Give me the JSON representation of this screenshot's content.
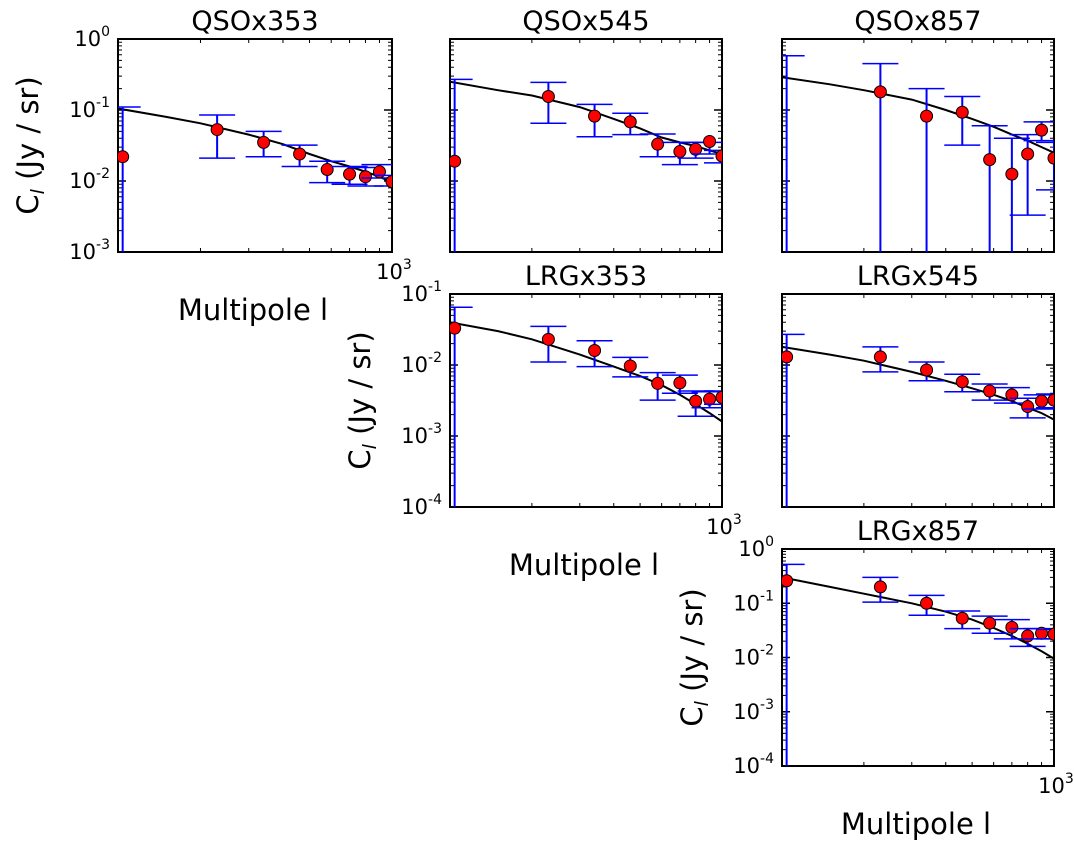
{
  "figure": {
    "tick_exponent_prefix": "10",
    "y_label_parts": {
      "main": "C",
      "sub": "l",
      "rest": " (Jy / sr)"
    },
    "x_label": "Multipole l"
  },
  "style": {
    "model_color": "#000000",
    "errorbar_color": "#0000ff",
    "marker_fill": "#ff0000",
    "marker_edge": "#000000"
  },
  "chart_data": [
    {
      "type": "scatter",
      "title": "QSOx353",
      "x_scale": "log",
      "y_scale": "log",
      "xlim": [
        100,
        1000
      ],
      "ylim": [
        0.001,
        1
      ],
      "y_tick_exponents": [
        -3,
        -2,
        -1,
        0
      ],
      "x_tick_exponents": [
        3
      ],
      "show_y_ticklabels": true,
      "show_x_ticklabels": true,
      "show_ylabel": true,
      "show_xlabel": true,
      "points": [
        {
          "x": 104,
          "y": 0.022,
          "lo": 0.0001,
          "hi": 0.11
        },
        {
          "x": 230,
          "y": 0.053,
          "lo": 0.021,
          "hi": 0.085
        },
        {
          "x": 340,
          "y": 0.035,
          "lo": 0.022,
          "hi": 0.05
        },
        {
          "x": 460,
          "y": 0.024,
          "lo": 0.016,
          "hi": 0.032
        },
        {
          "x": 580,
          "y": 0.0145,
          "lo": 0.0095,
          "hi": 0.019
        },
        {
          "x": 700,
          "y": 0.0125,
          "lo": 0.009,
          "hi": 0.016
        },
        {
          "x": 800,
          "y": 0.0115,
          "lo": 0.0085,
          "hi": 0.0155
        },
        {
          "x": 900,
          "y": 0.0135,
          "lo": 0.011,
          "hi": 0.017
        },
        {
          "x": 1000,
          "y": 0.0098,
          "lo": 0.0085,
          "hi": 0.012
        }
      ],
      "model": {
        "x": [
          100,
          150,
          200,
          300,
          400,
          500,
          600,
          700,
          800,
          900,
          1000
        ],
        "y": [
          0.105,
          0.08,
          0.065,
          0.045,
          0.033,
          0.024,
          0.019,
          0.016,
          0.0135,
          0.0115,
          0.0095
        ]
      }
    },
    {
      "type": "scatter",
      "title": "QSOx545",
      "x_scale": "log",
      "y_scale": "log",
      "xlim": [
        100,
        1000
      ],
      "ylim": [
        0.001,
        1
      ],
      "y_tick_exponents": [
        -3,
        -2,
        -1,
        0
      ],
      "x_tick_exponents": [
        3
      ],
      "show_y_ticklabels": false,
      "show_x_ticklabels": false,
      "show_ylabel": false,
      "show_xlabel": false,
      "points": [
        {
          "x": 104,
          "y": 0.019,
          "lo": 0.0001,
          "hi": 0.27
        },
        {
          "x": 230,
          "y": 0.155,
          "lo": 0.065,
          "hi": 0.245
        },
        {
          "x": 340,
          "y": 0.082,
          "lo": 0.042,
          "hi": 0.12
        },
        {
          "x": 460,
          "y": 0.068,
          "lo": 0.045,
          "hi": 0.09
        },
        {
          "x": 580,
          "y": 0.033,
          "lo": 0.022,
          "hi": 0.046
        },
        {
          "x": 700,
          "y": 0.026,
          "lo": 0.017,
          "hi": 0.035
        },
        {
          "x": 800,
          "y": 0.028,
          "lo": 0.021,
          "hi": 0.035
        },
        {
          "x": 900,
          "y": 0.036,
          "lo": 0.024,
          "hi": 0.035
        },
        {
          "x": 1000,
          "y": 0.0225,
          "lo": 0.018,
          "hi": 0.027
        }
      ],
      "model": {
        "x": [
          100,
          150,
          200,
          300,
          400,
          500,
          600,
          700,
          800,
          900,
          1000
        ],
        "y": [
          0.25,
          0.19,
          0.16,
          0.11,
          0.075,
          0.055,
          0.041,
          0.035,
          0.031,
          0.027,
          0.024
        ]
      }
    },
    {
      "type": "scatter",
      "title": "QSOx857",
      "x_scale": "log",
      "y_scale": "log",
      "xlim": [
        100,
        1000
      ],
      "ylim": [
        0.001,
        1
      ],
      "y_tick_exponents": [
        -3,
        -2,
        -1,
        0
      ],
      "x_tick_exponents": [
        3
      ],
      "show_y_ticklabels": false,
      "show_x_ticklabels": false,
      "show_ylabel": false,
      "show_xlabel": false,
      "points": [
        {
          "x": 104,
          "y": 0.001,
          "lo": 0.0001,
          "hi": 0.58
        },
        {
          "x": 230,
          "y": 0.18,
          "lo": 0.0001,
          "hi": 0.45
        },
        {
          "x": 340,
          "y": 0.082,
          "lo": 0.0001,
          "hi": 0.2
        },
        {
          "x": 460,
          "y": 0.093,
          "lo": 0.032,
          "hi": 0.155
        },
        {
          "x": 580,
          "y": 0.02,
          "lo": 0.0001,
          "hi": 0.06
        },
        {
          "x": 700,
          "y": 0.0125,
          "lo": 0.0001,
          "hi": 0.04
        },
        {
          "x": 800,
          "y": 0.024,
          "lo": 0.0033,
          "hi": 0.045
        },
        {
          "x": 900,
          "y": 0.052,
          "lo": 0.037,
          "hi": 0.068
        },
        {
          "x": 1000,
          "y": 0.021,
          "lo": 0.0075,
          "hi": 0.035
        }
      ],
      "model": {
        "x": [
          100,
          150,
          200,
          300,
          400,
          500,
          600,
          700,
          800,
          900,
          1000
        ],
        "y": [
          0.29,
          0.23,
          0.19,
          0.14,
          0.1,
          0.075,
          0.058,
          0.045,
          0.037,
          0.03,
          0.025
        ]
      }
    },
    {
      "type": "scatter",
      "title": "LRGx353",
      "x_scale": "log",
      "y_scale": "log",
      "xlim": [
        100,
        1000
      ],
      "ylim": [
        0.0001,
        0.1
      ],
      "y_tick_exponents": [
        -4,
        -3,
        -2,
        -1
      ],
      "x_tick_exponents": [
        3
      ],
      "show_y_ticklabels": true,
      "show_x_ticklabels": true,
      "show_ylabel": true,
      "show_xlabel": true,
      "points": [
        {
          "x": 104,
          "y": 0.033,
          "lo": 1e-05,
          "hi": 0.065
        },
        {
          "x": 230,
          "y": 0.023,
          "lo": 0.011,
          "hi": 0.035
        },
        {
          "x": 340,
          "y": 0.016,
          "lo": 0.0095,
          "hi": 0.022
        },
        {
          "x": 460,
          "y": 0.0097,
          "lo": 0.0068,
          "hi": 0.0128
        },
        {
          "x": 580,
          "y": 0.0055,
          "lo": 0.0032,
          "hi": 0.0078
        },
        {
          "x": 700,
          "y": 0.0056,
          "lo": 0.004,
          "hi": 0.0072
        },
        {
          "x": 800,
          "y": 0.0031,
          "lo": 0.0019,
          "hi": 0.0043
        },
        {
          "x": 900,
          "y": 0.0033,
          "lo": 0.0025,
          "hi": 0.0042
        },
        {
          "x": 1000,
          "y": 0.0035,
          "lo": 0.0028,
          "hi": 0.0043
        }
      ],
      "model": {
        "x": [
          100,
          150,
          200,
          300,
          400,
          500,
          600,
          700,
          800,
          900,
          1000
        ],
        "y": [
          0.04,
          0.03,
          0.023,
          0.014,
          0.0095,
          0.007,
          0.0052,
          0.0038,
          0.0028,
          0.0021,
          0.0016
        ]
      }
    },
    {
      "type": "scatter",
      "title": "LRGx545",
      "x_scale": "log",
      "y_scale": "log",
      "xlim": [
        100,
        1000
      ],
      "ylim": [
        0.0001,
        0.1
      ],
      "y_tick_exponents": [
        -4,
        -3,
        -2,
        -1
      ],
      "x_tick_exponents": [
        3
      ],
      "show_y_ticklabels": false,
      "show_x_ticklabels": false,
      "show_ylabel": false,
      "show_xlabel": false,
      "points": [
        {
          "x": 104,
          "y": 0.013,
          "lo": 1e-05,
          "hi": 0.027
        },
        {
          "x": 230,
          "y": 0.013,
          "lo": 0.008,
          "hi": 0.018
        },
        {
          "x": 340,
          "y": 0.0085,
          "lo": 0.006,
          "hi": 0.011
        },
        {
          "x": 460,
          "y": 0.0058,
          "lo": 0.0042,
          "hi": 0.0074
        },
        {
          "x": 580,
          "y": 0.0043,
          "lo": 0.0032,
          "hi": 0.0054
        },
        {
          "x": 700,
          "y": 0.0038,
          "lo": 0.0029,
          "hi": 0.0048
        },
        {
          "x": 800,
          "y": 0.0026,
          "lo": 0.0018,
          "hi": 0.0034
        },
        {
          "x": 900,
          "y": 0.0031,
          "lo": 0.0024,
          "hi": 0.0038
        },
        {
          "x": 1000,
          "y": 0.0032,
          "lo": 0.0025,
          "hi": 0.0039
        }
      ],
      "model": {
        "x": [
          100,
          150,
          200,
          300,
          400,
          500,
          600,
          700,
          800,
          900,
          1000
        ],
        "y": [
          0.018,
          0.014,
          0.0115,
          0.008,
          0.006,
          0.0047,
          0.0038,
          0.0031,
          0.0025,
          0.0021,
          0.0017
        ]
      }
    },
    {
      "type": "scatter",
      "title": "LRGx857",
      "x_scale": "log",
      "y_scale": "log",
      "xlim": [
        100,
        1000
      ],
      "ylim": [
        0.0001,
        1
      ],
      "y_tick_exponents": [
        -4,
        -3,
        -2,
        -1,
        0
      ],
      "x_tick_exponents": [
        3
      ],
      "show_y_ticklabels": true,
      "show_x_ticklabels": true,
      "show_ylabel": true,
      "show_xlabel": true,
      "points": [
        {
          "x": 104,
          "y": 0.26,
          "lo": 1e-05,
          "hi": 0.52
        },
        {
          "x": 230,
          "y": 0.2,
          "lo": 0.105,
          "hi": 0.3
        },
        {
          "x": 340,
          "y": 0.1,
          "lo": 0.06,
          "hi": 0.14
        },
        {
          "x": 460,
          "y": 0.053,
          "lo": 0.034,
          "hi": 0.072
        },
        {
          "x": 580,
          "y": 0.043,
          "lo": 0.028,
          "hi": 0.058
        },
        {
          "x": 700,
          "y": 0.036,
          "lo": 0.022,
          "hi": 0.05
        },
        {
          "x": 800,
          "y": 0.025,
          "lo": 0.016,
          "hi": 0.034
        },
        {
          "x": 900,
          "y": 0.028,
          "lo": 0.022,
          "hi": 0.034
        },
        {
          "x": 1000,
          "y": 0.027,
          "lo": 0.022,
          "hi": 0.033
        }
      ],
      "model": {
        "x": [
          100,
          150,
          200,
          300,
          400,
          500,
          600,
          700,
          800,
          900,
          1000
        ],
        "y": [
          0.3,
          0.2,
          0.15,
          0.1,
          0.07,
          0.05,
          0.035,
          0.025,
          0.018,
          0.013,
          0.0095
        ]
      }
    }
  ]
}
